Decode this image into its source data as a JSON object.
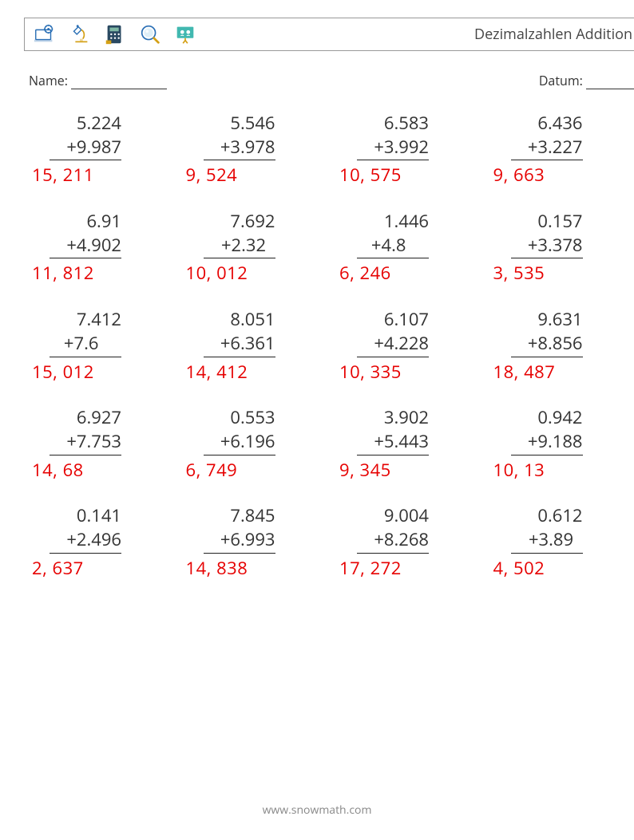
{
  "header": {
    "title": "Dezimalzahlen Addition",
    "icons": [
      "laptop-gear-icon",
      "microscope-icon",
      "calculator-icon",
      "magnifier-icon",
      "presentation-icon"
    ]
  },
  "meta": {
    "name_label": "Name:",
    "date_label": "Datum:"
  },
  "style": {
    "answer_color": "#e60000",
    "text_color": "#333333",
    "border_color": "#999999",
    "number_fontsize": 22,
    "answer_fontsize": 22,
    "columns": 4,
    "rows": 5
  },
  "problems": [
    {
      "op1": "5.224",
      "op2": "+9.987",
      "ans": "15, 211"
    },
    {
      "op1": "5.546",
      "op2": "+3.978",
      "ans": " 9, 524"
    },
    {
      "op1": "6.583",
      "op2": "+3.992",
      "ans": "10, 575"
    },
    {
      "op1": "6.436",
      "op2": "+3.227",
      "ans": "9, 663"
    },
    {
      "op1": "6.91",
      "op2": "+4.902",
      "ans": "11, 812"
    },
    {
      "op1": "7.692",
      "op2": "+2.32  ",
      "ans": "10, 012"
    },
    {
      "op1": "1.446",
      "op2": "+4.8     ",
      "ans": " 6, 246"
    },
    {
      "op1": "0.157",
      "op2": "+3.378",
      "ans": "3, 535"
    },
    {
      "op1": "7.412",
      "op2": "+7.6     ",
      "ans": "15, 012"
    },
    {
      "op1": "8.051",
      "op2": "+6.361",
      "ans": "14, 412"
    },
    {
      "op1": "6.107",
      "op2": "+4.228",
      "ans": "10, 335"
    },
    {
      "op1": "9.631",
      "op2": "+8.856",
      "ans": "18, 487"
    },
    {
      "op1": "6.927",
      "op2": "+7.753",
      "ans": " 14, 68"
    },
    {
      "op1": "0.553",
      "op2": "+6.196",
      "ans": " 6, 749"
    },
    {
      "op1": "3.902",
      "op2": "+5.443",
      "ans": "9, 345"
    },
    {
      "op1": "0.942",
      "op2": "+9.188",
      "ans": "10, 13"
    },
    {
      "op1": "0.141",
      "op2": "+2.496",
      "ans": " 2, 637"
    },
    {
      "op1": "7.845",
      "op2": "+6.993",
      "ans": "14, 838"
    },
    {
      "op1": "9.004",
      "op2": "+8.268",
      "ans": "17, 272"
    },
    {
      "op1": "0.612",
      "op2": "+3.89  ",
      "ans": "4, 502"
    }
  ],
  "footer": {
    "text": "www.snowmath.com"
  }
}
